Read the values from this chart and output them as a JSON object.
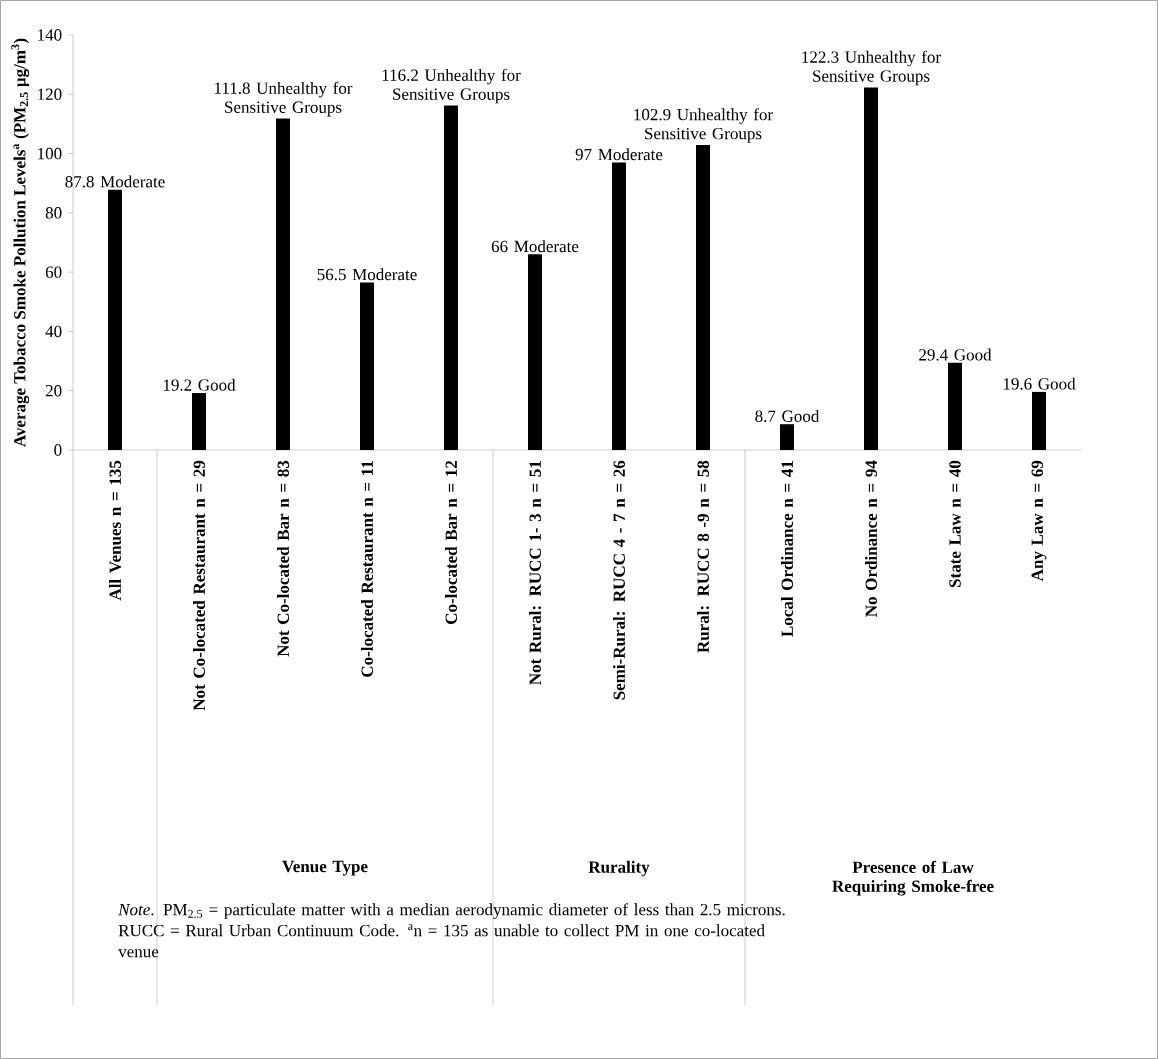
{
  "chart_data": {
    "type": "bar",
    "ylabel": "Average Tobacco Smoke Pollution Levels$^{a}$ (PM$_{2.5}$ µg/m$^{3}$)",
    "categories": [
      "All Venues n = 135",
      "Not Co-located Restaurant n = 29",
      "Not Co-located Bar n = 83",
      "Co-located Restaurant n = 11",
      "Co-located Bar n = 12",
      "Not Rural: RUCC 1- 3 n = 51",
      "Semi-Rural: RUCC 4 - 7 n = 26",
      "Rural: RUCC 8 -9 n = 58",
      "Local Ordinance n = 41",
      "No Ordinance n = 94",
      "State Law n = 40",
      "Any Law n = 69"
    ],
    "values": [
      87.8,
      19.2,
      111.8,
      56.5,
      116.2,
      66,
      97,
      102.9,
      8.7,
      122.3,
      29.4,
      19.6
    ],
    "value_labels": [
      "87.8 Moderate",
      "19.2 Good",
      "111.8 Unhealthy for Sensitive Groups",
      "56.5 Moderate",
      "116.2 Unhealthy for Sensitive Groups",
      "66 Moderate",
      "97 Moderate",
      "102.9 Unhealthy for Sensitive Groups",
      "8.7 Good",
      "122.3 Unhealthy for Sensitive Groups",
      "29.4 Good",
      "19.6 Good"
    ],
    "color": "#000000",
    "ylim": [
      0,
      140
    ],
    "yticks": [
      0,
      20,
      40,
      60,
      80,
      100,
      120,
      140
    ],
    "annotations": [
      "Venue Type",
      "Rurality",
      "Presence of Law Requiring Smoke-free",
      "*Note*. PM$_{2.5}$ = particulate matter with a median aerodynamic diameter of less than 2.5 microns. RUCC = Rural Urban Continuum Code. $^{a}$n = 135 as unable to collect PM in one co-located venue"
    ],
    "grid": false
  }
}
